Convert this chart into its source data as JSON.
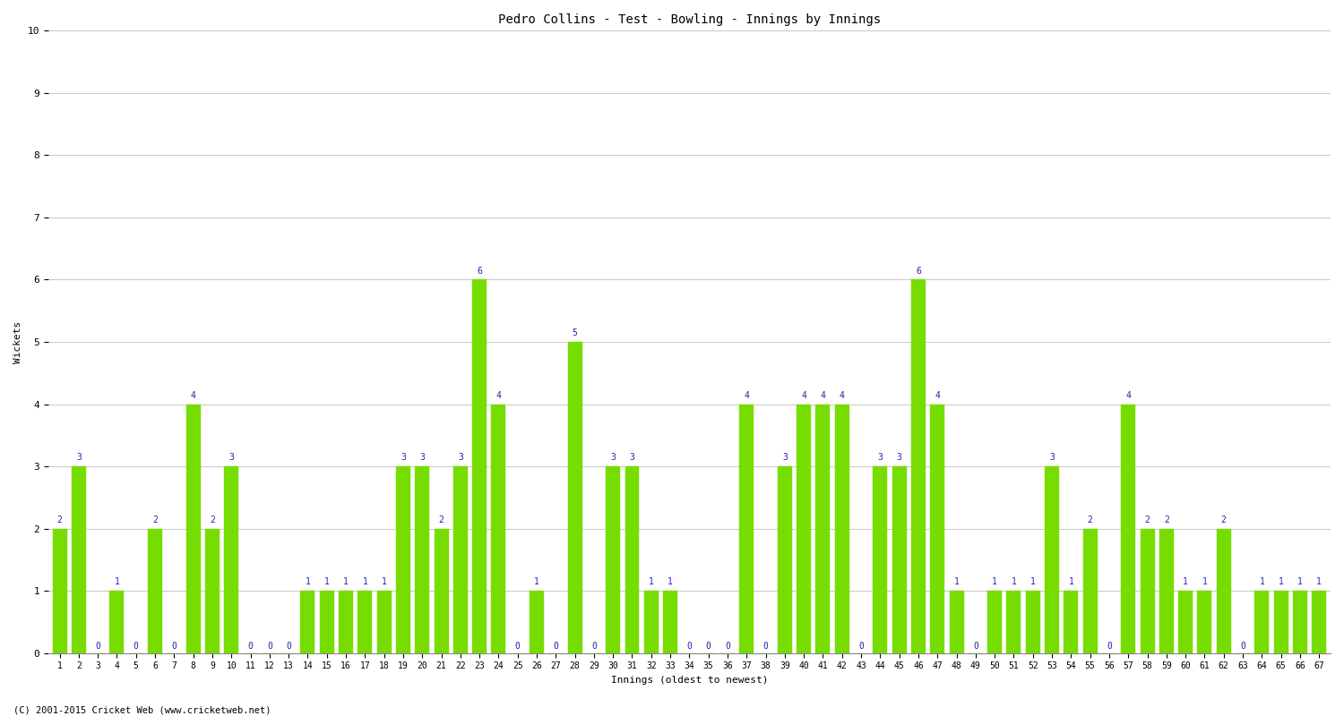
{
  "title": "Pedro Collins - Test - Bowling - Innings by Innings",
  "xlabel": "Innings (oldest to newest)",
  "ylabel": "Wickets",
  "ylim": [
    0,
    10
  ],
  "yticks": [
    0,
    1,
    2,
    3,
    4,
    5,
    6,
    7,
    8,
    9,
    10
  ],
  "bar_color": "#77DD00",
  "bar_edge_color": "#77DD00",
  "label_color": "#2222AA",
  "background_color": "#FFFFFF",
  "grid_color": "#CCCCCC",
  "footer": "(C) 2001-2015 Cricket Web (www.cricketweb.net)",
  "innings": [
    1,
    2,
    3,
    4,
    5,
    6,
    7,
    8,
    9,
    10,
    11,
    12,
    13,
    14,
    15,
    16,
    17,
    18,
    19,
    20,
    21,
    22,
    23,
    24,
    25,
    26,
    27,
    28,
    29,
    30,
    31,
    32,
    33,
    34,
    35,
    36,
    37,
    38,
    39,
    40,
    41,
    42,
    43,
    44,
    45,
    46,
    47,
    48,
    49,
    50,
    51,
    52,
    53,
    54,
    55,
    56,
    57,
    58,
    59,
    60,
    61,
    62,
    63,
    64,
    65,
    66,
    67
  ],
  "wickets": [
    2,
    3,
    0,
    1,
    0,
    2,
    0,
    4,
    2,
    3,
    0,
    0,
    0,
    1,
    1,
    1,
    1,
    1,
    3,
    3,
    2,
    3,
    6,
    4,
    0,
    1,
    0,
    5,
    0,
    3,
    3,
    1,
    1,
    0,
    0,
    0,
    4,
    0,
    3,
    4,
    4,
    4,
    0,
    3,
    3,
    6,
    4,
    1,
    0,
    1,
    1,
    1,
    3,
    1,
    2,
    0,
    4,
    2,
    2,
    1,
    1,
    2,
    0,
    1,
    1,
    1,
    1
  ],
  "title_fontsize": 10,
  "axis_label_fontsize": 8,
  "tick_fontsize": 7,
  "value_label_fontsize": 7
}
